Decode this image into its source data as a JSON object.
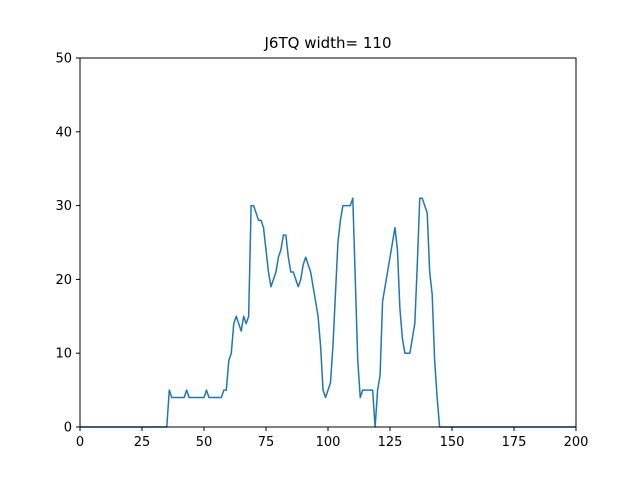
{
  "chart_data": {
    "type": "line",
    "title": "J6TQ width= 110",
    "xlabel": "",
    "ylabel": "",
    "xlim": [
      0,
      200
    ],
    "ylim": [
      0,
      50
    ],
    "x_ticks": [
      0,
      25,
      50,
      75,
      100,
      125,
      150,
      175,
      200
    ],
    "x_tick_labels": [
      "0",
      "25",
      "50",
      "75",
      "100",
      "125",
      "150",
      "175",
      "200"
    ],
    "y_ticks": [
      0,
      10,
      20,
      30,
      40,
      50
    ],
    "y_tick_labels": [
      "0",
      "10",
      "20",
      "30",
      "40",
      "50"
    ],
    "grid": false,
    "line_color": "#1f77b4",
    "series": [
      {
        "x": [
          0,
          35,
          36,
          37,
          38,
          39,
          40,
          41,
          42,
          43,
          44,
          45,
          46,
          47,
          48,
          49,
          50,
          51,
          52,
          53,
          54,
          55,
          56,
          57,
          58,
          59,
          60,
          61,
          62,
          63,
          64,
          65,
          66,
          67,
          68,
          69,
          70,
          71,
          72,
          73,
          74,
          75,
          76,
          77,
          78,
          79,
          80,
          81,
          82,
          83,
          84,
          85,
          86,
          87,
          88,
          89,
          90,
          91,
          92,
          93,
          94,
          95,
          96,
          97,
          98,
          99,
          100,
          101,
          102,
          103,
          104,
          105,
          106,
          107,
          108,
          109,
          110,
          111,
          112,
          113,
          114,
          115,
          116,
          117,
          118,
          119,
          120,
          121,
          122,
          123,
          124,
          125,
          126,
          127,
          128,
          129,
          130,
          131,
          132,
          133,
          134,
          135,
          136,
          137,
          138,
          139,
          140,
          141,
          142,
          143,
          144,
          145,
          146,
          200
        ],
        "values": [
          0,
          0,
          5,
          4,
          4,
          4,
          4,
          4,
          4,
          5,
          4,
          4,
          4,
          4,
          4,
          4,
          4,
          5,
          4,
          4,
          4,
          4,
          4,
          4,
          5,
          5,
          9,
          10,
          14,
          15,
          14,
          13,
          15,
          14,
          15,
          30,
          30,
          29,
          28,
          28,
          27,
          24,
          21,
          19,
          20,
          21,
          23,
          24,
          26,
          26,
          23,
          21,
          21,
          20,
          19,
          20,
          22,
          23,
          22,
          21,
          19,
          17,
          15,
          11,
          5,
          4,
          5,
          6,
          11,
          18,
          25,
          28,
          30,
          30,
          30,
          30,
          31,
          20,
          9,
          4,
          5,
          5,
          5,
          5,
          5,
          0,
          5,
          7,
          17,
          19,
          21,
          23,
          25,
          27,
          24,
          16,
          12,
          10,
          10,
          10,
          12,
          14,
          22,
          31,
          31,
          30,
          29,
          21,
          18,
          9,
          4,
          0,
          0,
          0
        ]
      }
    ]
  }
}
